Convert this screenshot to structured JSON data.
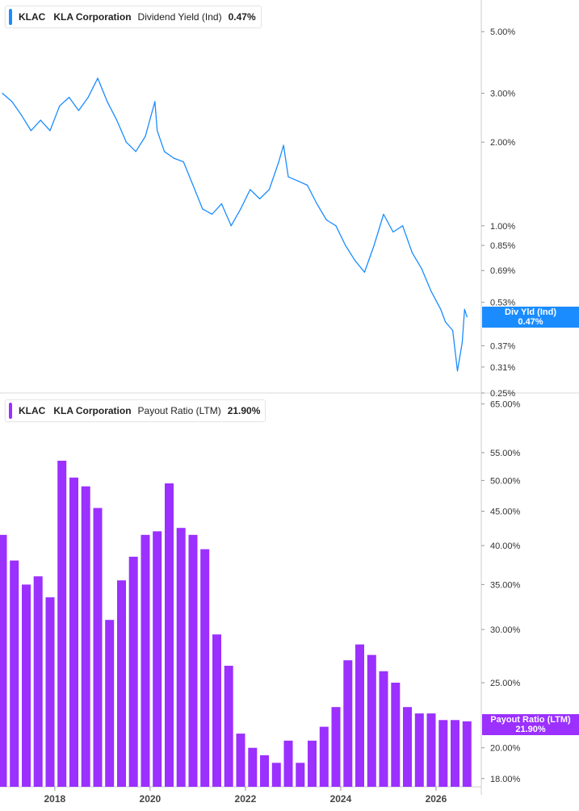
{
  "top_panel": {
    "ticker": "KLAC",
    "company": "KLA Corporation",
    "metric": "Dividend Yield (Ind)",
    "value": "0.47%",
    "tag_label": "Div Yld (Ind)",
    "tag_value": "0.47%",
    "color": "#1a8cff"
  },
  "bottom_panel": {
    "ticker": "KLAC",
    "company": "KLA Corporation",
    "metric": "Payout Ratio (LTM)",
    "value": "21.90%",
    "tag_label": "Payout Ratio (LTM)",
    "tag_value": "21.90%",
    "color": "#9b30ff"
  },
  "chart_data": [
    {
      "type": "line",
      "scale": "log",
      "series": [
        {
          "name": "Dividend Yield (Ind)",
          "x": [
            2016.9,
            2017.1,
            2017.3,
            2017.5,
            2017.7,
            2017.9,
            2018.1,
            2018.3,
            2018.5,
            2018.7,
            2018.9,
            2019.1,
            2019.3,
            2019.5,
            2019.7,
            2019.9,
            2020.1,
            2020.15,
            2020.3,
            2020.5,
            2020.7,
            2020.9,
            2021.1,
            2021.3,
            2021.5,
            2021.7,
            2021.9,
            2022.1,
            2022.3,
            2022.5,
            2022.7,
            2022.8,
            2022.9,
            2023.1,
            2023.3,
            2023.5,
            2023.7,
            2023.9,
            2024.1,
            2024.3,
            2024.5,
            2024.7,
            2024.9,
            2025.1,
            2025.3,
            2025.5,
            2025.7,
            2025.9,
            2026.1,
            2026.2,
            2026.35,
            2026.45,
            2026.55,
            2026.6,
            2026.65
          ],
          "y": [
            3.0,
            2.8,
            2.5,
            2.2,
            2.4,
            2.2,
            2.7,
            2.9,
            2.6,
            2.9,
            3.4,
            2.8,
            2.4,
            2.0,
            1.85,
            2.1,
            2.8,
            2.2,
            1.85,
            1.75,
            1.7,
            1.4,
            1.15,
            1.1,
            1.2,
            1.0,
            1.15,
            1.35,
            1.25,
            1.35,
            1.7,
            1.95,
            1.5,
            1.45,
            1.4,
            1.2,
            1.05,
            1.0,
            0.85,
            0.75,
            0.68,
            0.85,
            1.1,
            0.95,
            1.0,
            0.8,
            0.7,
            0.58,
            0.5,
            0.45,
            0.42,
            0.3,
            0.38,
            0.5,
            0.47
          ]
        }
      ],
      "y_ticks": [
        "5.00%",
        "3.00%",
        "2.00%",
        "1.00%",
        "0.85%",
        "0.69%",
        "0.53%",
        "0.37%",
        "0.31%",
        "0.25%"
      ],
      "ylim": [
        0.25,
        6.5
      ]
    },
    {
      "type": "bar",
      "scale": "log",
      "series": [
        {
          "name": "Payout Ratio (LTM)",
          "x": [
            2016.9,
            2017.15,
            2017.4,
            2017.65,
            2017.9,
            2018.15,
            2018.4,
            2018.65,
            2018.9,
            2019.15,
            2019.4,
            2019.65,
            2019.9,
            2020.15,
            2020.4,
            2020.65,
            2020.9,
            2021.15,
            2021.4,
            2021.65,
            2021.9,
            2022.15,
            2022.4,
            2022.65,
            2022.9,
            2023.15,
            2023.4,
            2023.65,
            2023.9,
            2024.15,
            2024.4,
            2024.65,
            2024.9,
            2025.15,
            2025.4,
            2025.65,
            2025.9,
            2026.15,
            2026.4,
            2026.65
          ],
          "values": [
            41.5,
            38.0,
            35.0,
            36.0,
            33.5,
            53.5,
            50.5,
            49.0,
            45.5,
            31.0,
            35.5,
            38.5,
            41.5,
            42.0,
            49.5,
            42.5,
            41.5,
            39.5,
            29.5,
            26.5,
            21.0,
            20.0,
            19.5,
            19.0,
            20.5,
            19.0,
            20.5,
            21.5,
            23.0,
            27.0,
            28.5,
            27.5,
            26.0,
            25.0,
            23.0,
            22.5,
            22.5,
            22.0,
            22.0,
            21.9
          ]
        }
      ],
      "y_ticks": [
        "65.00%",
        "55.00%",
        "50.00%",
        "45.00%",
        "40.00%",
        "35.00%",
        "30.00%",
        "25.00%",
        "20.00%",
        "18.00%"
      ],
      "ylim": [
        17.5,
        66
      ]
    }
  ],
  "x_axis": {
    "ticks": [
      "2018",
      "2020",
      "2022",
      "2024",
      "2026"
    ],
    "tick_values": [
      2018,
      2020,
      2022,
      2024,
      2026
    ],
    "range": [
      2016.85,
      2026.95
    ]
  }
}
